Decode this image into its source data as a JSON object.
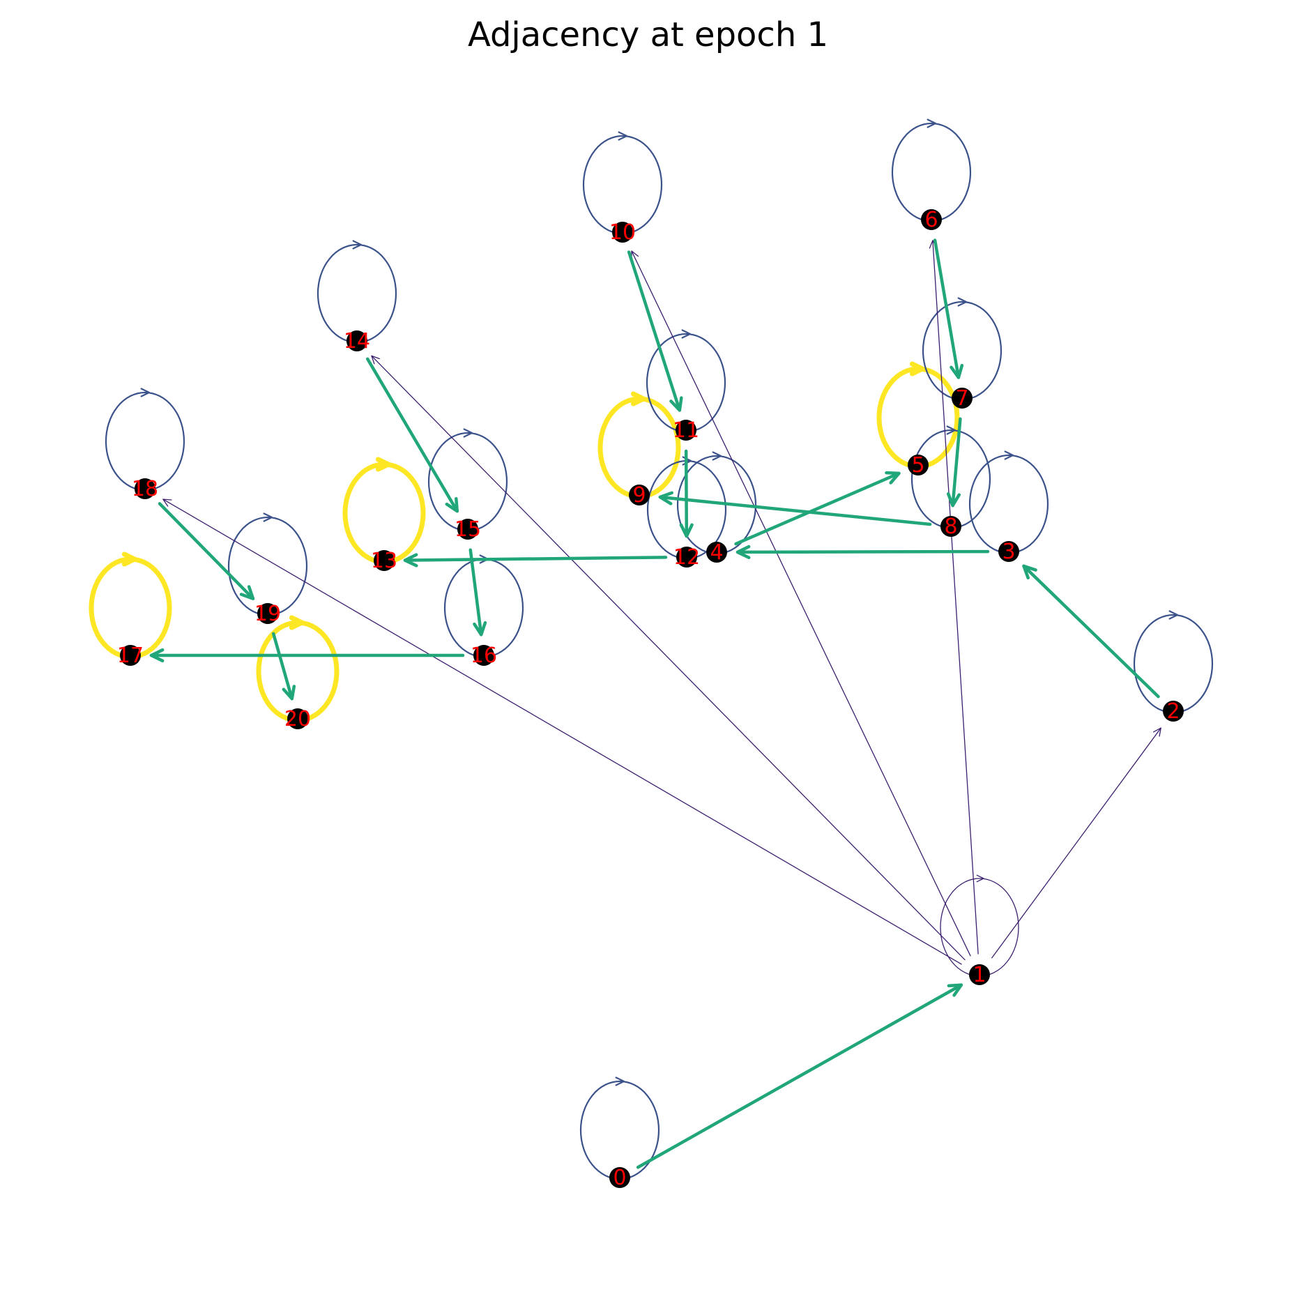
{
  "title": "Adjacency at epoch 1",
  "colors": {
    "node_fill": "#000000",
    "label": "#ff0000",
    "weight_low": "#3b1f6e",
    "weight_mid_low": "#3b528b",
    "weight_mid": "#21a67a",
    "weight_high": "#fde725",
    "background": "#ffffff"
  },
  "nodes": [
    {
      "id": "0",
      "label": "0"
    },
    {
      "id": "1",
      "label": "1"
    },
    {
      "id": "2",
      "label": "2"
    },
    {
      "id": "3",
      "label": "3"
    },
    {
      "id": "4",
      "label": "4"
    },
    {
      "id": "5",
      "label": "5"
    },
    {
      "id": "6",
      "label": "6"
    },
    {
      "id": "7",
      "label": "7"
    },
    {
      "id": "8",
      "label": "8"
    },
    {
      "id": "9",
      "label": "9"
    },
    {
      "id": "10",
      "label": "10"
    },
    {
      "id": "11",
      "label": "11"
    },
    {
      "id": "12",
      "label": "12"
    },
    {
      "id": "13",
      "label": "13"
    },
    {
      "id": "14",
      "label": "14"
    },
    {
      "id": "15",
      "label": "15"
    },
    {
      "id": "16",
      "label": "16"
    },
    {
      "id": "17",
      "label": "17"
    },
    {
      "id": "18",
      "label": "18"
    },
    {
      "id": "19",
      "label": "19"
    },
    {
      "id": "20",
      "label": "20"
    }
  ],
  "edges": [
    {
      "from": "0",
      "to": "1",
      "weight_class": "mid"
    },
    {
      "from": "1",
      "to": "2",
      "weight_class": "low"
    },
    {
      "from": "1",
      "to": "6",
      "weight_class": "low"
    },
    {
      "from": "1",
      "to": "10",
      "weight_class": "low"
    },
    {
      "from": "1",
      "to": "14",
      "weight_class": "low"
    },
    {
      "from": "1",
      "to": "18",
      "weight_class": "low"
    },
    {
      "from": "2",
      "to": "3",
      "weight_class": "mid"
    },
    {
      "from": "3",
      "to": "4",
      "weight_class": "mid"
    },
    {
      "from": "4",
      "to": "5",
      "weight_class": "mid"
    },
    {
      "from": "6",
      "to": "7",
      "weight_class": "mid"
    },
    {
      "from": "7",
      "to": "8",
      "weight_class": "mid"
    },
    {
      "from": "8",
      "to": "9",
      "weight_class": "mid"
    },
    {
      "from": "10",
      "to": "11",
      "weight_class": "mid"
    },
    {
      "from": "11",
      "to": "12",
      "weight_class": "mid"
    },
    {
      "from": "12",
      "to": "13",
      "weight_class": "mid"
    },
    {
      "from": "14",
      "to": "15",
      "weight_class": "mid"
    },
    {
      "from": "15",
      "to": "16",
      "weight_class": "mid"
    },
    {
      "from": "16",
      "to": "17",
      "weight_class": "mid"
    },
    {
      "from": "18",
      "to": "19",
      "weight_class": "mid"
    },
    {
      "from": "19",
      "to": "20",
      "weight_class": "mid"
    }
  ],
  "self_loops": [
    {
      "node": "0",
      "weight_class": "mid_low"
    },
    {
      "node": "1",
      "weight_class": "low"
    },
    {
      "node": "2",
      "weight_class": "mid_low"
    },
    {
      "node": "3",
      "weight_class": "mid_low"
    },
    {
      "node": "4",
      "weight_class": "mid_low"
    },
    {
      "node": "5",
      "weight_class": "high"
    },
    {
      "node": "6",
      "weight_class": "mid_low"
    },
    {
      "node": "7",
      "weight_class": "mid_low"
    },
    {
      "node": "8",
      "weight_class": "mid_low"
    },
    {
      "node": "9",
      "weight_class": "high"
    },
    {
      "node": "10",
      "weight_class": "mid_low"
    },
    {
      "node": "11",
      "weight_class": "mid_low"
    },
    {
      "node": "12",
      "weight_class": "mid_low"
    },
    {
      "node": "13",
      "weight_class": "high"
    },
    {
      "node": "14",
      "weight_class": "mid_low"
    },
    {
      "node": "15",
      "weight_class": "mid_low"
    },
    {
      "node": "16",
      "weight_class": "mid_low"
    },
    {
      "node": "17",
      "weight_class": "high"
    },
    {
      "node": "18",
      "weight_class": "mid_low"
    },
    {
      "node": "19",
      "weight_class": "mid_low"
    },
    {
      "node": "20",
      "weight_class": "high"
    }
  ]
}
